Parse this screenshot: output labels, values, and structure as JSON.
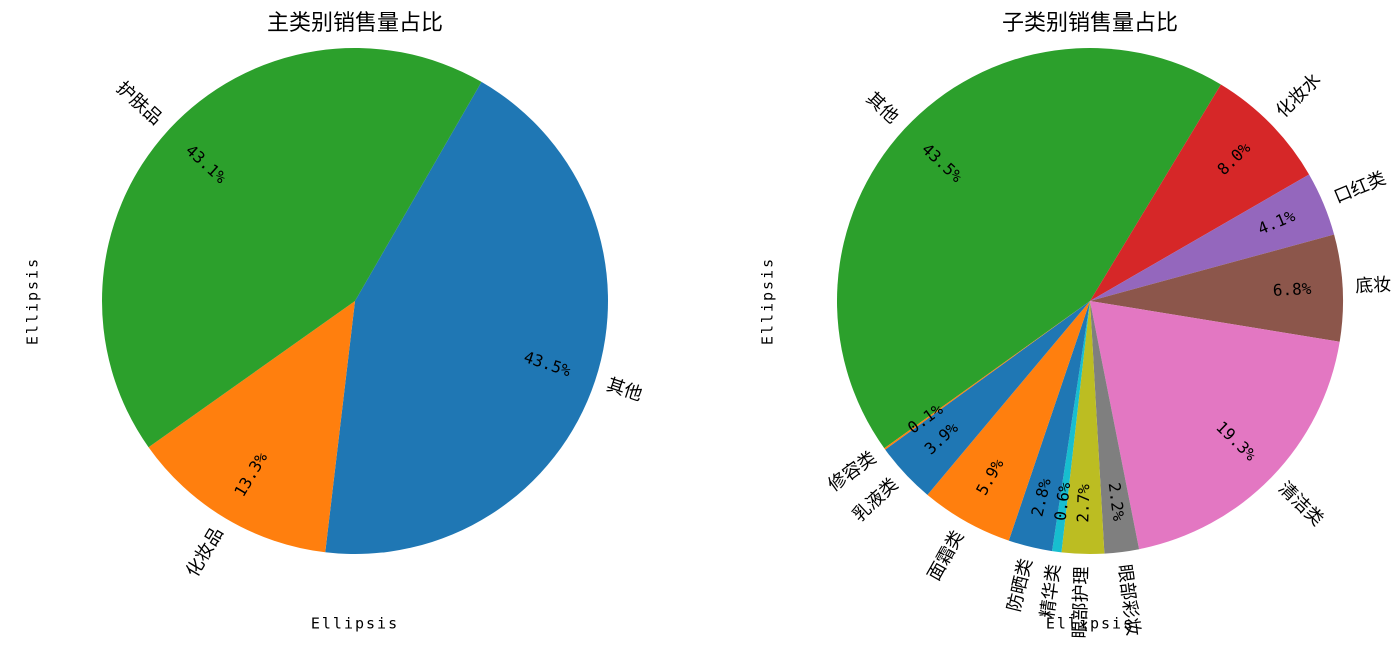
{
  "chart_data": [
    {
      "type": "pie",
      "title": "主类别销售量占比",
      "xlabel": "Ellipsis",
      "ylabel": "Ellipsis",
      "startangle": 60,
      "counterclock": false,
      "categories": [
        "其他",
        "化妆品",
        "护肤品"
      ],
      "values": [
        43.5,
        13.3,
        43.1
      ],
      "value_labels": [
        "43.5%",
        "13.3%",
        "43.1%"
      ],
      "colors": [
        "#1f77b4",
        "#ff7f0e",
        "#2ca02c"
      ]
    },
    {
      "type": "pie",
      "title": "子类别销售量占比",
      "xlabel": "Ellipsis",
      "ylabel": "Ellipsis",
      "startangle": 215.6,
      "counterclock": false,
      "categories": [
        "其他",
        "化妆水",
        "口红类",
        "底妆类",
        "清洁类",
        "眼部彩妆",
        "眼部护理",
        "精华类",
        "防晒类",
        "面霜类",
        "乳液类",
        "修容类"
      ],
      "values": [
        43.5,
        8.0,
        4.1,
        6.8,
        19.3,
        2.2,
        2.7,
        0.6,
        2.8,
        5.9,
        3.9,
        0.1
      ],
      "value_labels": [
        "43.5%",
        "8.0%",
        "4.1%",
        "6.8%",
        "19.3%",
        "2.2%",
        "2.7%",
        "0.6%",
        "2.8%",
        "5.9%",
        "3.9%",
        "0.1%"
      ],
      "colors": [
        "#2ca02c",
        "#d62728",
        "#9467bd",
        "#8c564b",
        "#e377c2",
        "#7f7f7f",
        "#bcbd22",
        "#17becf",
        "#1f77b4",
        "#ff7f0e",
        "#1f77b4",
        "#ff7f0e"
      ]
    }
  ]
}
